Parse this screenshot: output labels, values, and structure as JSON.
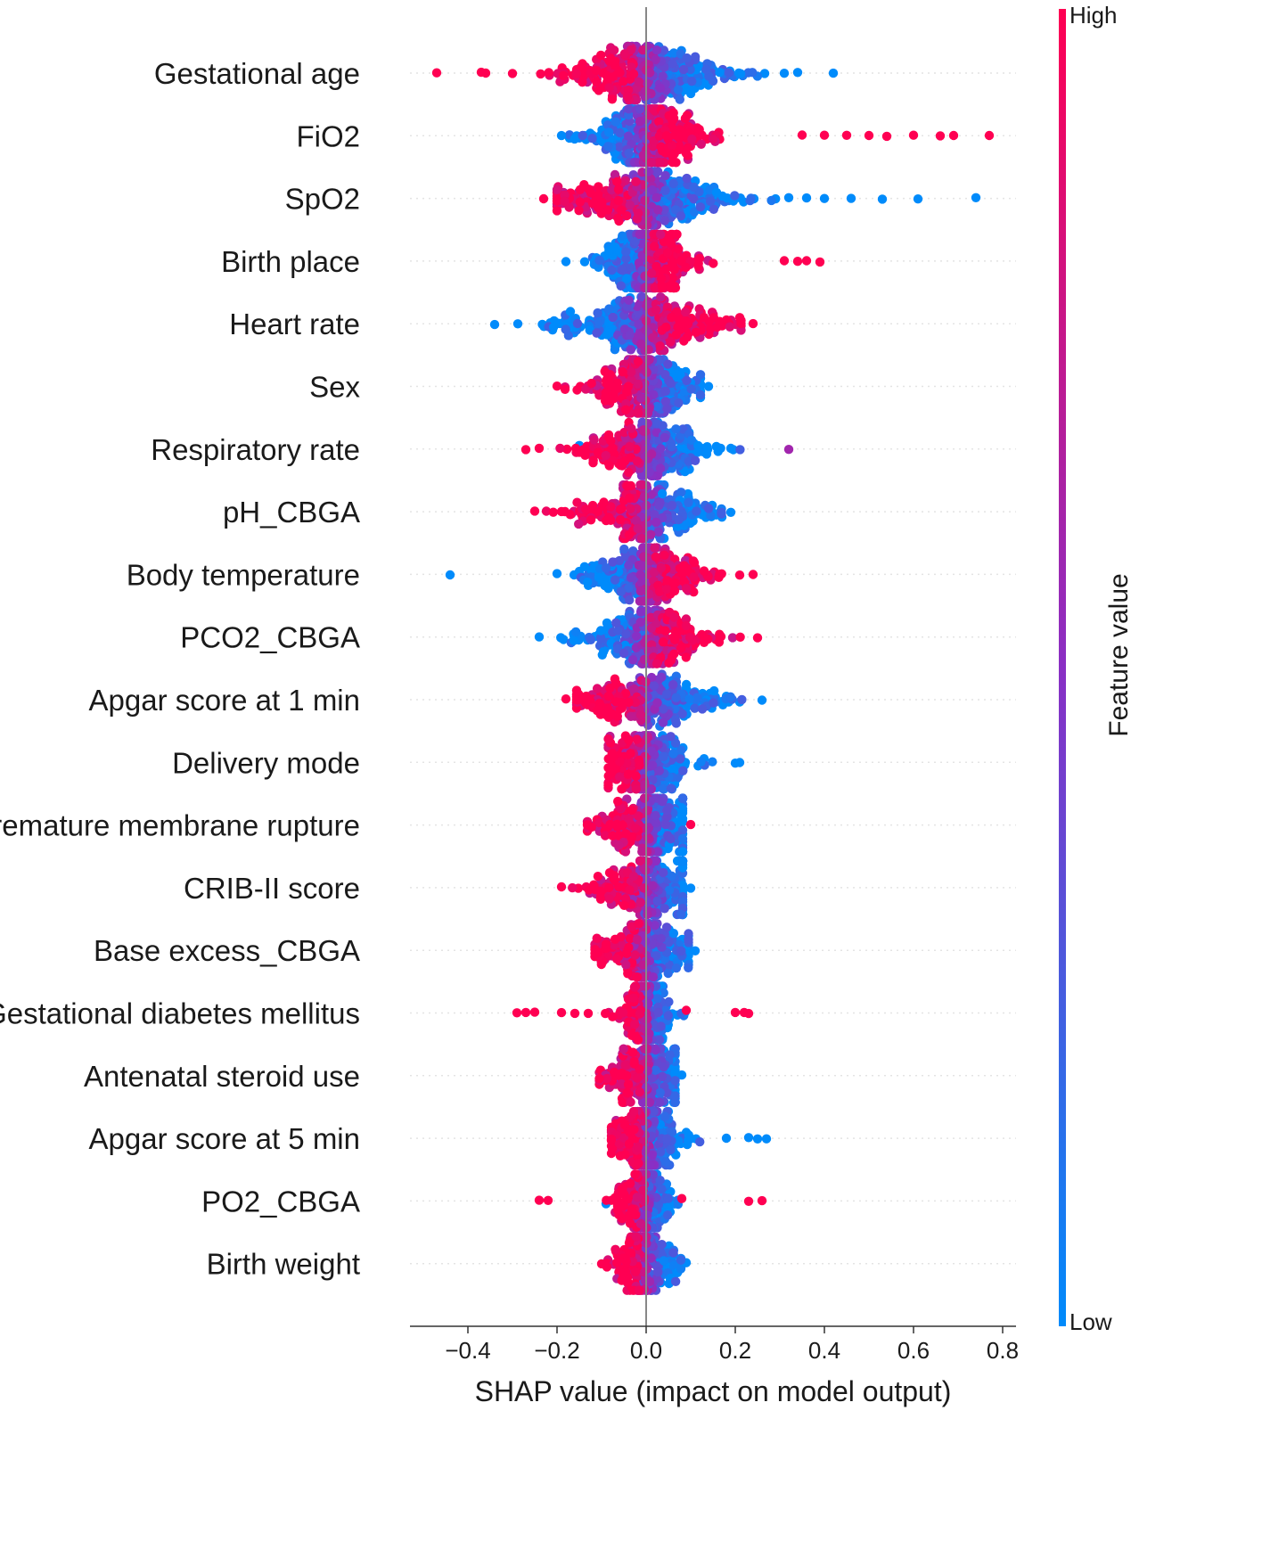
{
  "chart_data": {
    "type": "scatter",
    "subtype": "shap-beeswarm-summary",
    "xlabel": "SHAP value (impact on model output)",
    "xlim": [
      -0.53,
      0.83
    ],
    "xticks": [
      -0.4,
      -0.2,
      0.0,
      0.2,
      0.4,
      0.6,
      0.8
    ],
    "xtick_labels": [
      "−0.4",
      "−0.2",
      "0.0",
      "0.2",
      "0.4",
      "0.6",
      "0.8"
    ],
    "colorbar": {
      "title": "Feature value",
      "high_label": "High",
      "low_label": "Low",
      "low_color": "#008bfb",
      "high_color": "#ff0052",
      "mid_color": "#8a2fc4"
    },
    "features": [
      {
        "name": "Gestational age",
        "min": -0.47,
        "max": 0.42,
        "high_side": "negative",
        "spread": 0.09,
        "density": 1.0,
        "outliers": [
          [
            -0.47,
            1
          ],
          [
            -0.37,
            1
          ],
          [
            -0.36,
            1
          ],
          [
            -0.3,
            1
          ],
          [
            0.31,
            0
          ],
          [
            0.34,
            0
          ],
          [
            0.42,
            0
          ]
        ]
      },
      {
        "name": "FiO2",
        "min": -0.19,
        "max": 0.77,
        "high_side": "positive",
        "spread": 0.06,
        "density": 1.0,
        "outliers": [
          [
            -0.19,
            0
          ],
          [
            0.35,
            1
          ],
          [
            0.4,
            1
          ],
          [
            0.45,
            1
          ],
          [
            0.5,
            1
          ],
          [
            0.54,
            1
          ],
          [
            0.6,
            1
          ],
          [
            0.66,
            1
          ],
          [
            0.69,
            1
          ],
          [
            0.77,
            1
          ]
        ]
      },
      {
        "name": "SpO2",
        "min": -0.23,
        "max": 0.74,
        "high_side": "negative",
        "spread": 0.1,
        "density": 1.0,
        "outliers": [
          [
            -0.23,
            1
          ],
          [
            0.32,
            0
          ],
          [
            0.36,
            0
          ],
          [
            0.4,
            0
          ],
          [
            0.46,
            0
          ],
          [
            0.53,
            0
          ],
          [
            0.61,
            0
          ],
          [
            0.74,
            0
          ]
        ]
      },
      {
        "name": "Birth place",
        "min": -0.18,
        "max": 0.39,
        "high_side": "positive",
        "spread": 0.05,
        "density": 1.0,
        "outliers": [
          [
            -0.18,
            0
          ],
          [
            0.31,
            1
          ],
          [
            0.34,
            1
          ],
          [
            0.36,
            1
          ],
          [
            0.39,
            1
          ]
        ]
      },
      {
        "name": "Heart rate",
        "min": -0.34,
        "max": 0.24,
        "high_side": "positive",
        "spread": 0.09,
        "density": 0.9,
        "outliers": [
          [
            -0.34,
            0
          ],
          [
            -0.21,
            0
          ],
          [
            -0.17,
            0
          ],
          [
            0.21,
            1
          ],
          [
            0.24,
            1
          ]
        ]
      },
      {
        "name": "Sex",
        "min": -0.2,
        "max": 0.14,
        "high_side": "negative",
        "spread": 0.06,
        "density": 0.85,
        "outliers": [
          [
            -0.2,
            1
          ],
          [
            0.14,
            0
          ]
        ]
      },
      {
        "name": "Respiratory rate",
        "min": -0.27,
        "max": 0.32,
        "high_side": "negative",
        "spread": 0.07,
        "density": 0.8,
        "outliers": [
          [
            -0.27,
            1
          ],
          [
            -0.24,
            1
          ],
          [
            -0.15,
            0
          ],
          [
            0.19,
            0
          ],
          [
            0.32,
            0.6
          ]
        ]
      },
      {
        "name": "pH_CBGA",
        "min": -0.25,
        "max": 0.19,
        "high_side": "negative",
        "spread": 0.07,
        "density": 0.8,
        "outliers": [
          [
            -0.25,
            1
          ],
          [
            -0.19,
            1
          ],
          [
            0.17,
            0
          ],
          [
            0.19,
            0
          ]
        ]
      },
      {
        "name": "Body temperature",
        "min": -0.44,
        "max": 0.24,
        "high_side": "positive",
        "spread": 0.07,
        "density": 0.8,
        "outliers": [
          [
            -0.44,
            0
          ],
          [
            -0.2,
            0
          ],
          [
            -0.15,
            0
          ],
          [
            -0.11,
            0
          ],
          [
            0.21,
            1
          ],
          [
            0.24,
            1
          ]
        ]
      },
      {
        "name": "PCO2_CBGA",
        "min": -0.24,
        "max": 0.25,
        "high_side": "positive",
        "spread": 0.07,
        "density": 0.8,
        "outliers": [
          [
            -0.24,
            0
          ],
          [
            0.13,
            1
          ],
          [
            0.25,
            1
          ]
        ]
      },
      {
        "name": "Apgar score at 1 min",
        "min": -0.18,
        "max": 0.26,
        "high_side": "negative",
        "spread": 0.08,
        "density": 0.75,
        "outliers": [
          [
            -0.18,
            1
          ],
          [
            0.21,
            0
          ],
          [
            0.26,
            0
          ]
        ]
      },
      {
        "name": "Delivery mode",
        "min": -0.1,
        "max": 0.21,
        "high_side": "negative",
        "spread": 0.05,
        "density": 0.7,
        "outliers": [
          [
            0.13,
            0
          ],
          [
            0.2,
            0
          ],
          [
            0.21,
            0
          ]
        ]
      },
      {
        "name": "Premature membrane rupture",
        "min": -0.15,
        "max": 0.1,
        "high_side": "negative",
        "spread": 0.06,
        "density": 0.75,
        "outliers": [
          [
            0.1,
            1
          ]
        ]
      },
      {
        "name": "CRIB-II score",
        "min": -0.19,
        "max": 0.1,
        "high_side": "negative",
        "spread": 0.06,
        "density": 0.7,
        "outliers": [
          [
            -0.19,
            1
          ],
          [
            0.1,
            0
          ]
        ]
      },
      {
        "name": "Base excess_CBGA",
        "min": -0.13,
        "max": 0.11,
        "high_side": "negative",
        "spread": 0.05,
        "density": 0.7,
        "outliers": [
          [
            0.11,
            0
          ]
        ]
      },
      {
        "name": "Gestational diabetes mellitus",
        "min": -0.29,
        "max": 0.23,
        "high_side": "negative",
        "spread": 0.03,
        "density": 0.55,
        "outliers": [
          [
            -0.29,
            1
          ],
          [
            -0.27,
            1
          ],
          [
            -0.25,
            1
          ],
          [
            -0.19,
            1
          ],
          [
            -0.16,
            1
          ],
          [
            -0.13,
            1
          ],
          [
            0.09,
            1
          ],
          [
            0.2,
            1
          ],
          [
            0.22,
            1
          ],
          [
            0.23,
            1
          ]
        ]
      },
      {
        "name": "Antenatal steroid use",
        "min": -0.12,
        "max": 0.08,
        "high_side": "negative",
        "spread": 0.05,
        "density": 0.7,
        "outliers": [
          [
            0.08,
            0
          ]
        ]
      },
      {
        "name": "Apgar score at 5 min",
        "min": -0.09,
        "max": 0.27,
        "high_side": "negative",
        "spread": 0.04,
        "density": 0.7,
        "outliers": [
          [
            0.1,
            0
          ],
          [
            0.18,
            0
          ],
          [
            0.23,
            0
          ],
          [
            0.25,
            0
          ],
          [
            0.27,
            0
          ]
        ]
      },
      {
        "name": "PO2_CBGA",
        "min": -0.24,
        "max": 0.26,
        "high_side": "negative",
        "spread": 0.03,
        "density": 0.55,
        "outliers": [
          [
            -0.24,
            1
          ],
          [
            -0.22,
            1
          ],
          [
            -0.09,
            0
          ],
          [
            0.08,
            1
          ],
          [
            0.23,
            1
          ],
          [
            0.26,
            1
          ]
        ]
      },
      {
        "name": "Birth weight",
        "min": -0.1,
        "max": 0.09,
        "high_side": "negative",
        "spread": 0.04,
        "density": 0.6,
        "outliers": [
          [
            -0.1,
            1
          ],
          [
            0.09,
            0
          ]
        ]
      }
    ]
  }
}
